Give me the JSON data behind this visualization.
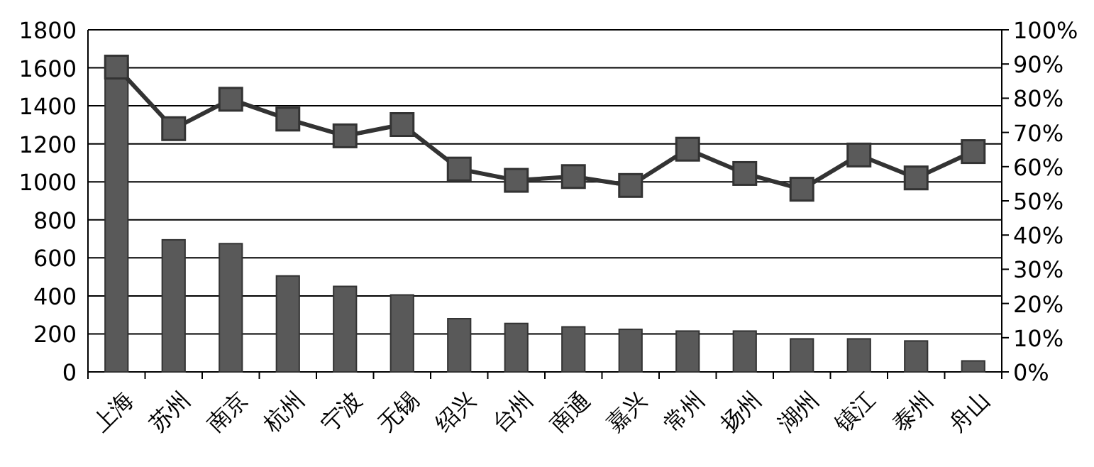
{
  "chart_data": {
    "type": "bar",
    "categories": [
      "上海",
      "苏州",
      "南京",
      "杭州",
      "宁波",
      "无锡",
      "绍兴",
      "台州",
      "南通",
      "嘉兴",
      "常州",
      "扬州",
      "湖州",
      "镇江",
      "泰州",
      "舟山"
    ],
    "series": [
      {
        "color": "#595959",
        "values": [
          1620,
          695,
          675,
          505,
          450,
          405,
          280,
          255,
          237,
          224,
          215,
          215,
          174,
          174,
          163,
          58
        ]
      },
      {
        "type": "line",
        "axis": "y2",
        "color": "#333333",
        "marker": "square",
        "values": [
          89.1,
          71.1,
          79.7,
          73.9,
          69.0,
          72.3,
          59.3,
          56.0,
          57.1,
          54.5,
          65.1,
          58.0,
          53.4,
          63.4,
          56.7,
          64.4
        ]
      }
    ],
    "ylim": [
      0,
      1800
    ],
    "yticks": [
      0,
      200,
      400,
      600,
      800,
      1000,
      1200,
      1400,
      1600,
      1800
    ],
    "y2lim": [
      0,
      100
    ],
    "y2ticks": [
      {
        "value": 0,
        "label": "0%"
      },
      {
        "value": 10,
        "label": "10%"
      },
      {
        "value": 20,
        "label": "20%"
      },
      {
        "value": 30,
        "label": "30%"
      },
      {
        "value": 40,
        "label": "40%"
      },
      {
        "value": 50,
        "label": "50%"
      },
      {
        "value": 60,
        "label": "60%"
      },
      {
        "value": 70,
        "label": "70%"
      },
      {
        "value": 80,
        "label": "80%"
      },
      {
        "value": 90,
        "label": "90%"
      },
      {
        "value": 100,
        "label": "100%"
      }
    ],
    "grid": "y"
  }
}
